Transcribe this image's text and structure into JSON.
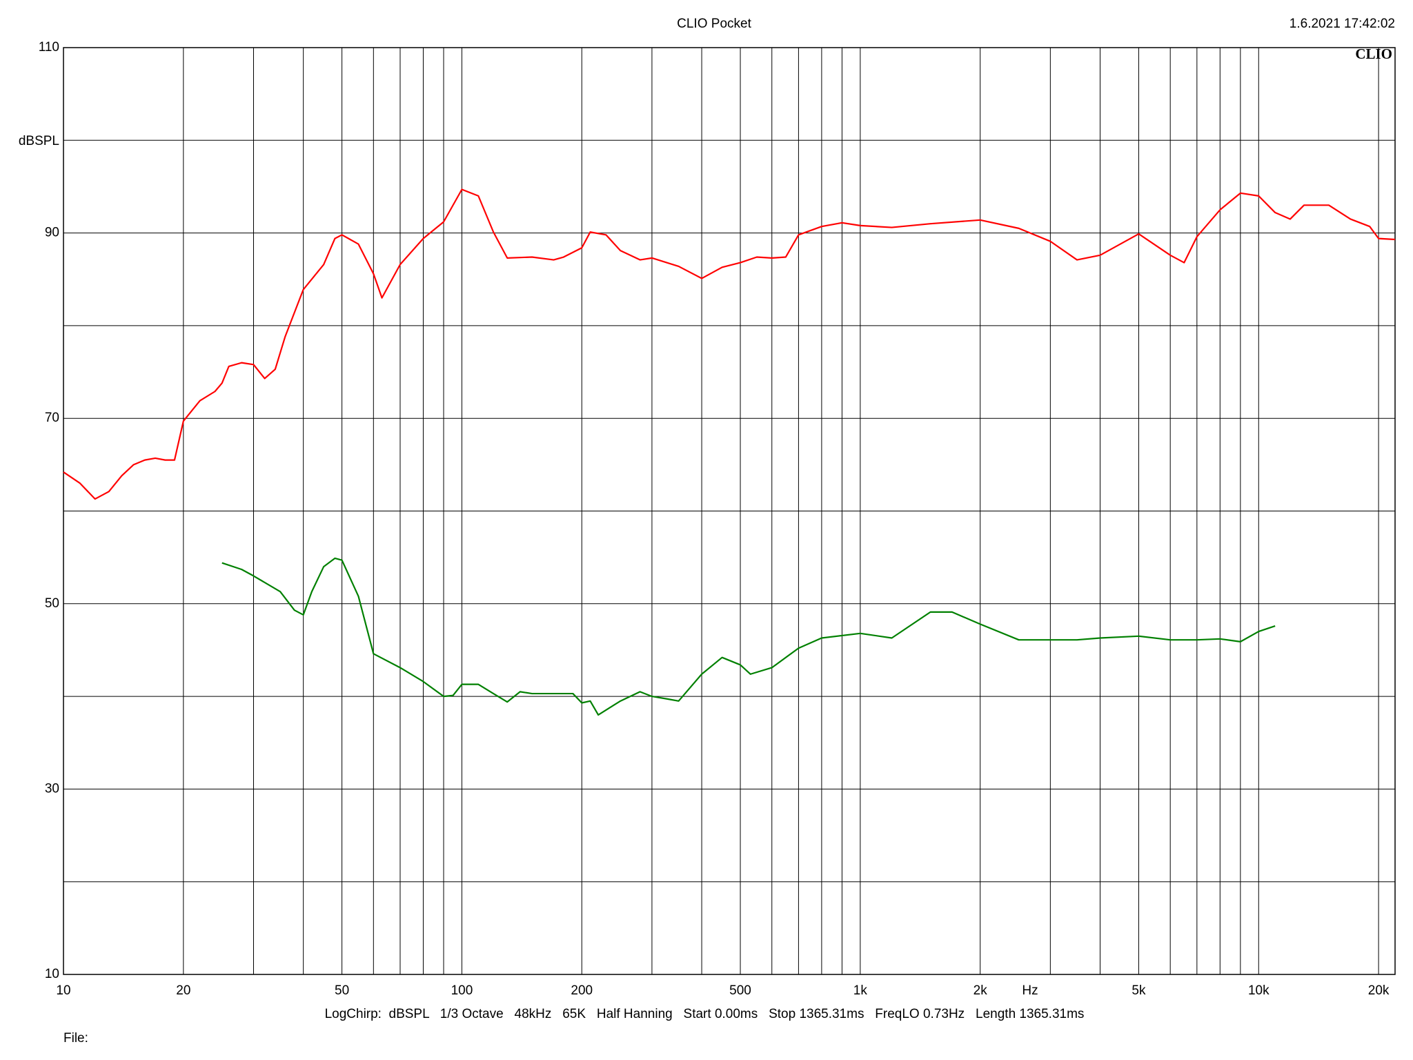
{
  "chart_data": {
    "type": "line",
    "title": "CLIO Pocket",
    "timestamp": "1.6.2021 17:42:02",
    "logo": "CLIO",
    "y_label": "dBSPL",
    "x_label": "Hz",
    "footer": "LogChirp:  dBSPL   1/3 Octave   48kHz   65K   Half Hanning   Start 0.00ms   Stop 1365.31ms   FreqLO 0.73Hz   Length 1365.31ms",
    "file_label": "File:",
    "x_scale": "log",
    "grid": true,
    "xlim": [
      10,
      22000
    ],
    "ylim": [
      10,
      110
    ],
    "xticks": [
      10,
      20,
      {
        "value": 30,
        "label": null
      },
      {
        "value": 40,
        "label": null
      },
      50,
      {
        "value": 60,
        "label": null
      },
      {
        "value": 70,
        "label": null
      },
      {
        "value": 80,
        "label": null
      },
      {
        "value": 90,
        "label": null
      },
      100,
      200,
      {
        "value": 300,
        "label": null
      },
      {
        "value": 400,
        "label": null
      },
      500,
      {
        "value": 600,
        "label": null
      },
      {
        "value": 700,
        "label": null
      },
      {
        "value": 800,
        "label": null
      },
      {
        "value": 900,
        "label": null
      },
      {
        "value": 1000,
        "label": "1k"
      },
      {
        "value": 2000,
        "label": "2k"
      },
      {
        "value": 3000,
        "label": null
      },
      {
        "value": 4000,
        "label": null
      },
      {
        "value": 5000,
        "label": "5k"
      },
      {
        "value": 6000,
        "label": null
      },
      {
        "value": 7000,
        "label": null
      },
      {
        "value": 8000,
        "label": null
      },
      {
        "value": 9000,
        "label": null
      },
      {
        "value": 10000,
        "label": "10k"
      },
      {
        "value": 20000,
        "label": "20k"
      }
    ],
    "yticks": [
      10,
      {
        "value": 20,
        "label": null
      },
      30,
      {
        "value": 40,
        "label": null
      },
      50,
      {
        "value": 60,
        "label": null
      },
      70,
      {
        "value": 80,
        "label": null
      },
      90,
      {
        "value": 100,
        "label": null
      },
      110
    ],
    "series": [
      {
        "color": "#ff0000",
        "x": [
          10,
          11,
          12,
          13,
          14,
          15,
          16,
          17,
          18,
          19,
          20,
          22,
          24,
          25,
          26,
          28,
          30,
          32,
          34,
          36,
          40,
          45,
          48,
          50,
          55,
          60,
          63,
          70,
          80,
          90,
          100,
          110,
          120,
          130,
          150,
          170,
          180,
          200,
          210,
          230,
          250,
          280,
          300,
          350,
          400,
          450,
          500,
          550,
          600,
          650,
          700,
          800,
          900,
          1000,
          1200,
          1500,
          2000,
          2500,
          3000,
          3500,
          4000,
          5000,
          6000,
          6500,
          7000,
          8000,
          9000,
          10000,
          11000,
          12000,
          13000,
          15000,
          17000,
          19000,
          20000,
          22000
        ],
        "values": [
          64.2,
          63.0,
          61.3,
          62.1,
          63.8,
          65.0,
          65.5,
          65.7,
          65.5,
          65.5,
          69.7,
          71.9,
          72.9,
          73.8,
          75.6,
          76.0,
          75.8,
          74.3,
          75.3,
          78.8,
          83.9,
          86.6,
          89.4,
          89.8,
          88.8,
          85.6,
          83.0,
          86.6,
          89.4,
          91.2,
          94.7,
          94.0,
          90.1,
          87.3,
          87.4,
          87.1,
          87.4,
          88.4,
          90.1,
          89.8,
          88.1,
          87.1,
          87.3,
          86.4,
          85.1,
          86.3,
          86.8,
          87.4,
          87.3,
          87.4,
          89.8,
          90.7,
          91.1,
          90.8,
          90.6,
          91.0,
          91.4,
          90.5,
          89.1,
          87.1,
          87.6,
          89.9,
          87.6,
          86.8,
          89.6,
          92.5,
          94.3,
          94.0,
          92.2,
          91.5,
          93.0,
          93.0,
          91.5,
          90.7,
          89.4,
          89.3
        ]
      },
      {
        "color": "#008000",
        "x": [
          25,
          28,
          30,
          35,
          38,
          40,
          42,
          45,
          48,
          50,
          55,
          60,
          70,
          80,
          90,
          95,
          100,
          110,
          120,
          130,
          140,
          150,
          170,
          190,
          200,
          210,
          220,
          250,
          280,
          300,
          330,
          350,
          400,
          450,
          500,
          530,
          600,
          700,
          800,
          1000,
          1200,
          1500,
          1700,
          2000,
          2500,
          3000,
          3500,
          4000,
          5000,
          6000,
          7000,
          8000,
          9000,
          10000,
          11000
        ],
        "values": [
          54.4,
          53.7,
          53.0,
          51.3,
          49.3,
          48.8,
          51.3,
          54.0,
          54.9,
          54.7,
          50.8,
          44.6,
          43.1,
          41.6,
          40.0,
          40.1,
          41.3,
          41.3,
          40.3,
          39.4,
          40.5,
          40.3,
          40.3,
          40.3,
          39.3,
          39.5,
          38.0,
          39.5,
          40.5,
          40.0,
          39.7,
          39.5,
          42.4,
          44.2,
          43.4,
          42.4,
          43.1,
          45.2,
          46.3,
          46.8,
          46.3,
          49.1,
          49.1,
          47.8,
          46.1,
          46.1,
          46.1,
          46.3,
          46.5,
          46.1,
          46.1,
          46.2,
          45.9,
          47.0,
          47.6
        ]
      }
    ]
  }
}
